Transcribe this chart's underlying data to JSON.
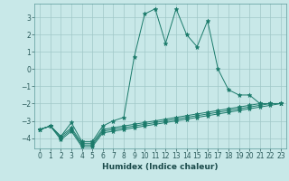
{
  "title": "",
  "xlabel": "Humidex (Indice chaleur)",
  "background_color": "#c8e8e8",
  "grid_color": "#a0c8c8",
  "line_color": "#1a7a6a",
  "xlim": [
    -0.5,
    23.5
  ],
  "ylim": [
    -4.6,
    3.8
  ],
  "yticks": [
    -4,
    -3,
    -2,
    -1,
    0,
    1,
    2,
    3
  ],
  "xticks": [
    0,
    1,
    2,
    3,
    4,
    5,
    6,
    7,
    8,
    9,
    10,
    11,
    12,
    13,
    14,
    15,
    16,
    17,
    18,
    19,
    20,
    21,
    22,
    23
  ],
  "series": [
    {
      "x": [
        0,
        1,
        2,
        3,
        4,
        5,
        6,
        7,
        8,
        9,
        10,
        11,
        12,
        13,
        14,
        15,
        16,
        17,
        18,
        19,
        20,
        21,
        22,
        23
      ],
      "y": [
        -3.5,
        -3.3,
        -3.9,
        -3.1,
        -4.2,
        -4.2,
        -3.3,
        -3.0,
        -2.8,
        0.7,
        3.2,
        3.5,
        1.5,
        3.5,
        2.0,
        1.3,
        2.8,
        0.0,
        -1.2,
        -1.5,
        -1.5,
        -2.0,
        -2.0,
        -2.0
      ]
    },
    {
      "x": [
        0,
        1,
        2,
        3,
        4,
        5,
        6,
        7,
        8,
        9,
        10,
        11,
        12,
        13,
        14,
        15,
        16,
        17,
        18,
        19,
        20,
        21,
        22,
        23
      ],
      "y": [
        -3.5,
        -3.3,
        -3.9,
        -3.4,
        -4.3,
        -4.3,
        -3.5,
        -3.4,
        -3.3,
        -3.2,
        -3.1,
        -3.0,
        -2.9,
        -2.8,
        -2.7,
        -2.6,
        -2.5,
        -2.4,
        -2.3,
        -2.2,
        -2.1,
        -2.0,
        -2.0,
        -2.0
      ]
    },
    {
      "x": [
        0,
        1,
        2,
        3,
        4,
        5,
        6,
        7,
        8,
        9,
        10,
        11,
        12,
        13,
        14,
        15,
        16,
        17,
        18,
        19,
        20,
        21,
        22,
        23
      ],
      "y": [
        -3.5,
        -3.3,
        -4.0,
        -3.5,
        -4.4,
        -4.4,
        -3.6,
        -3.5,
        -3.4,
        -3.3,
        -3.2,
        -3.1,
        -3.0,
        -2.9,
        -2.8,
        -2.7,
        -2.6,
        -2.5,
        -2.4,
        -2.3,
        -2.2,
        -2.1,
        -2.0,
        -2.0
      ]
    },
    {
      "x": [
        0,
        1,
        2,
        3,
        4,
        5,
        6,
        7,
        8,
        9,
        10,
        11,
        12,
        13,
        14,
        15,
        16,
        17,
        18,
        19,
        20,
        21,
        22,
        23
      ],
      "y": [
        -3.5,
        -3.3,
        -4.1,
        -3.6,
        -4.5,
        -4.5,
        -3.7,
        -3.6,
        -3.5,
        -3.4,
        -3.3,
        -3.2,
        -3.1,
        -3.0,
        -2.9,
        -2.8,
        -2.7,
        -2.6,
        -2.5,
        -2.4,
        -2.3,
        -2.2,
        -2.1,
        -2.0
      ]
    }
  ]
}
